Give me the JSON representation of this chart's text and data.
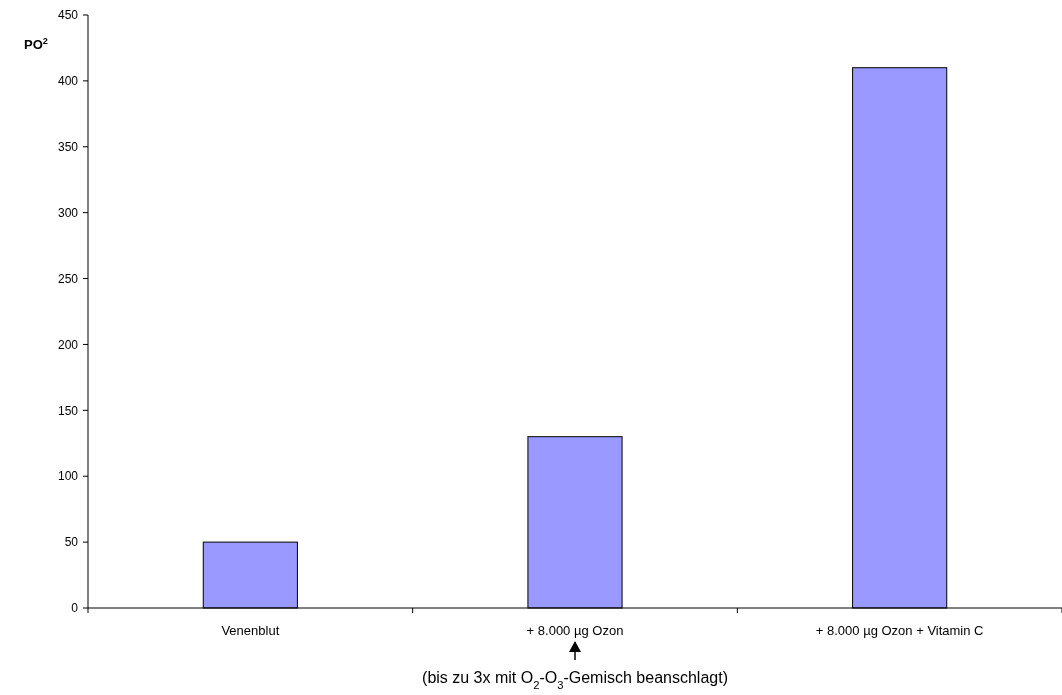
{
  "chart_data": {
    "type": "bar",
    "ylabel": "PO$^{2}$",
    "categories": [
      "Venenblut",
      "+ 8.000 µg Ozon",
      "+ 8.000 µg Ozon + Vitamin C"
    ],
    "values": [
      50,
      130,
      410
    ],
    "color": "#9999ff",
    "ylim": [
      0,
      450
    ],
    "yticks": [
      0,
      50,
      100,
      150,
      200,
      250,
      300,
      350,
      400,
      450
    ],
    "grid": false,
    "annotations": [
      {
        "text": "(bis zu 3x mit O$_{2}$-O$_{3}$-Gemisch beanschlagt)",
        "x": "+ 8.000 µg Ozon"
      }
    ]
  }
}
